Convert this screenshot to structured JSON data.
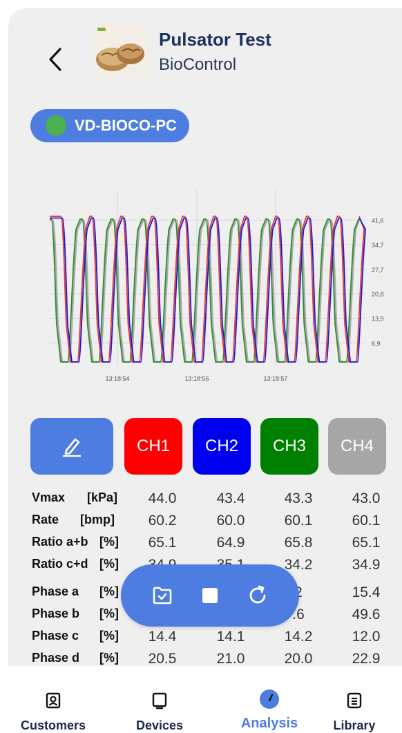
{
  "header": {
    "title": "Pulsator Test",
    "subtitle": "BioControl"
  },
  "device": {
    "name": "VD-BIOCO-PC",
    "status_color": "#4caf50"
  },
  "chart_data": {
    "type": "line",
    "y_ticks": [
      "41,6",
      "34,7",
      "27,7",
      "20,8",
      "13,9",
      "6,9"
    ],
    "x_ticks": [
      "13:18:54",
      "13:18:56",
      "13:18:57"
    ],
    "series": [
      {
        "color": "#e53935"
      },
      {
        "color": "#1a1ad8"
      },
      {
        "color": "#2e8b2e"
      },
      {
        "color": "#aaaaaa"
      }
    ]
  },
  "channels": [
    {
      "label": "CH1",
      "color": "#ff0000"
    },
    {
      "label": "CH2",
      "color": "#0000f0"
    },
    {
      "label": "CH3",
      "color": "#008000"
    },
    {
      "label": "CH4",
      "color": "#a6a6a6"
    }
  ],
  "stats": [
    {
      "label": "Vmax",
      "unit": "[kPa]",
      "values": [
        "44.0",
        "43.4",
        "43.3",
        "43.0"
      ]
    },
    {
      "label": "Rate",
      "unit": "[bmp]",
      "values": [
        "60.2",
        "60.0",
        "60.1",
        "60.1"
      ]
    },
    {
      "label": "Ratio a+b",
      "unit": "[%]",
      "values": [
        "65.1",
        "64.9",
        "65.8",
        "65.1"
      ]
    },
    {
      "label": "Ratio c+d",
      "unit": "[%]",
      "values": [
        "34.9",
        "35.1",
        "34.2",
        "34.9"
      ]
    },
    {
      "label": "Phase a",
      "unit": "[%]",
      "values": [
        "",
        "",
        "2",
        "15.4"
      ]
    },
    {
      "label": "Phase b",
      "unit": "[%]",
      "values": [
        "",
        "",
        ".6",
        "49.6"
      ]
    },
    {
      "label": "Phase c",
      "unit": "[%]",
      "values": [
        "14.4",
        "14.1",
        "14.2",
        "12.0"
      ]
    },
    {
      "label": "Phase d",
      "unit": "[%]",
      "values": [
        "20.5",
        "21.0",
        "20.0",
        "22.9"
      ]
    }
  ],
  "nav": [
    {
      "label": "Customers"
    },
    {
      "label": "Devices"
    },
    {
      "label": "Analysis"
    },
    {
      "label": "Library"
    }
  ]
}
